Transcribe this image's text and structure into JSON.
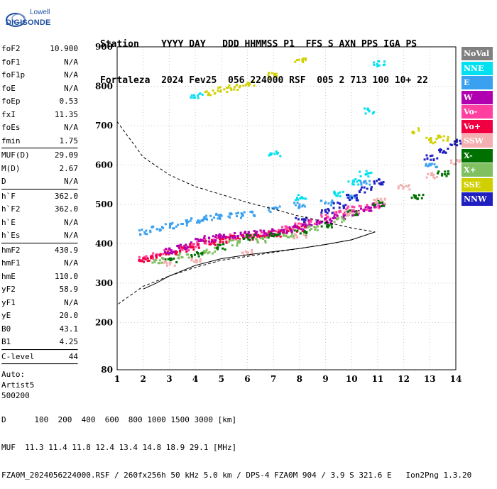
{
  "logo": {
    "line1": "Lowell",
    "line2": "DIGISONDE"
  },
  "header": {
    "labels": "Station    YYYY DAY   DDD HHMMSS P1  FFS S AXN PPS IGA PS",
    "values": "Fortaleza  2024 Fev25  056 224000 RSF  005 2 713 100 10+ 22"
  },
  "params": {
    "group1": [
      {
        "name": "foF2",
        "value": "10.900"
      },
      {
        "name": "foF1",
        "value": "N/A"
      },
      {
        "name": "foF1p",
        "value": "N/A"
      },
      {
        "name": "foE",
        "value": "N/A"
      },
      {
        "name": "foEp",
        "value": "0.53"
      },
      {
        "name": "fxI",
        "value": "11.35"
      },
      {
        "name": "foEs",
        "value": "N/A"
      },
      {
        "name": "fmin",
        "value": "1.75"
      }
    ],
    "group2": [
      {
        "name": "MUF(D)",
        "value": "29.09"
      },
      {
        "name": "M(D)",
        "value": "2.67"
      },
      {
        "name": "D",
        "value": "N/A"
      }
    ],
    "group3": [
      {
        "name": "h`F",
        "value": "362.0"
      },
      {
        "name": "h`F2",
        "value": "362.0"
      },
      {
        "name": "h`E",
        "value": "N/A"
      },
      {
        "name": "h`Es",
        "value": "N/A"
      }
    ],
    "group4": [
      {
        "name": "hmF2",
        "value": "430.9"
      },
      {
        "name": "hmF1",
        "value": "N/A"
      },
      {
        "name": "hmE",
        "value": "110.0"
      },
      {
        "name": "yF2",
        "value": "58.9"
      },
      {
        "name": "yF1",
        "value": "N/A"
      },
      {
        "name": "yE",
        "value": "20.0"
      },
      {
        "name": "B0",
        "value": "43.1"
      },
      {
        "name": "B1",
        "value": "4.25"
      }
    ],
    "group5": [
      {
        "name": "C-level",
        "value": "44"
      }
    ],
    "auto": [
      "Auto:",
      "Artist5",
      "500200"
    ]
  },
  "legend": [
    {
      "label": "NoVal",
      "color": "#808080"
    },
    {
      "label": "NNE",
      "color": "#00e0f0"
    },
    {
      "label": "E",
      "color": "#3aa0f0"
    },
    {
      "label": "W",
      "color": "#b000b0"
    },
    {
      "label": "Vo-",
      "color": "#ff40a0"
    },
    {
      "label": "Vo+",
      "color": "#f00040"
    },
    {
      "label": "SSW",
      "color": "#f4b0b0"
    },
    {
      "label": "X-",
      "color": "#007000"
    },
    {
      "label": "X+",
      "color": "#80c060"
    },
    {
      "label": "SSE",
      "color": "#d0d000"
    },
    {
      "label": "NNW",
      "color": "#2020c0"
    }
  ],
  "chart_data": {
    "type": "scatter",
    "xlim": [
      1,
      14
    ],
    "ylim": [
      80,
      900
    ],
    "x_ticks": [
      1,
      2,
      3,
      4,
      5,
      6,
      7,
      8,
      9,
      10,
      11,
      12,
      13,
      14
    ],
    "y_ticks": [
      80,
      200,
      300,
      400,
      500,
      600,
      700,
      800,
      900
    ],
    "grid": true,
    "legend_position": "right",
    "series": [
      {
        "color": "#ff40a0",
        "points": [
          [
            2,
            365
          ],
          [
            2.5,
            372
          ],
          [
            3,
            385
          ],
          [
            3.5,
            392
          ],
          [
            4,
            400
          ],
          [
            4.5,
            408
          ],
          [
            5,
            415
          ],
          [
            5.5,
            420
          ],
          [
            6,
            425
          ],
          [
            6.5,
            430
          ],
          [
            7,
            433
          ],
          [
            7.5,
            440
          ],
          [
            8,
            450
          ],
          [
            8.5,
            460
          ],
          [
            9,
            470
          ],
          [
            9.5,
            480
          ],
          [
            10,
            490
          ],
          [
            10.5,
            495
          ],
          [
            11,
            500
          ]
        ]
      },
      {
        "color": "#f00040",
        "points": [
          [
            2,
            362
          ],
          [
            2.5,
            370
          ],
          [
            3,
            380
          ],
          [
            3.5,
            388
          ],
          [
            4,
            395
          ],
          [
            4.5,
            405
          ],
          [
            5,
            412
          ],
          [
            5.5,
            418
          ],
          [
            6,
            420
          ],
          [
            6.5,
            425
          ],
          [
            7,
            428
          ],
          [
            7.5,
            435
          ],
          [
            8,
            440
          ]
        ]
      },
      {
        "color": "#b000b0",
        "points": [
          [
            3,
            385
          ],
          [
            3.5,
            395
          ],
          [
            4,
            410
          ],
          [
            4.5,
            415
          ],
          [
            5,
            420
          ],
          [
            5.5,
            425
          ],
          [
            6,
            428
          ],
          [
            6.5,
            430
          ],
          [
            7,
            432
          ],
          [
            7.5,
            438
          ],
          [
            8,
            445
          ],
          [
            8.5,
            455
          ],
          [
            9,
            460
          ],
          [
            9.5,
            470
          ],
          [
            10,
            480
          ],
          [
            10.5,
            490
          ],
          [
            11,
            500
          ]
        ]
      },
      {
        "color": "#3aa0f0",
        "points": [
          [
            2,
            432
          ],
          [
            2.5,
            440
          ],
          [
            3,
            448
          ],
          [
            3.5,
            455
          ],
          [
            4,
            463
          ],
          [
            4.5,
            468
          ],
          [
            5,
            472
          ],
          [
            5.5,
            475
          ],
          [
            6,
            478
          ],
          [
            7,
            490
          ],
          [
            8,
            500
          ],
          [
            9,
            505
          ],
          [
            10,
            520
          ],
          [
            10.5,
            560
          ],
          [
            13,
            600
          ]
        ]
      },
      {
        "color": "#007000",
        "points": [
          [
            3,
            362
          ],
          [
            4,
            375
          ],
          [
            5,
            395
          ],
          [
            6,
            418
          ],
          [
            7,
            422
          ],
          [
            8,
            430
          ],
          [
            9,
            450
          ],
          [
            10,
            480
          ],
          [
            11,
            505
          ],
          [
            12.5,
            520
          ],
          [
            13.5,
            580
          ]
        ]
      },
      {
        "color": "#80c060",
        "points": [
          [
            2.5,
            360
          ],
          [
            3.5,
            372
          ],
          [
            4.5,
            385
          ],
          [
            5.5,
            405
          ],
          [
            6.5,
            412
          ],
          [
            7.5,
            425
          ],
          [
            8.5,
            440
          ],
          [
            9.5,
            465
          ]
        ]
      },
      {
        "color": "#f4b0b0",
        "points": [
          [
            3,
            350
          ],
          [
            4,
            362
          ],
          [
            6,
            380
          ],
          [
            8,
            420
          ],
          [
            10,
            480
          ],
          [
            11,
            510
          ],
          [
            12,
            545
          ],
          [
            13,
            575
          ],
          [
            14,
            610
          ]
        ]
      },
      {
        "color": "#2020c0",
        "points": [
          [
            8,
            465
          ],
          [
            9,
            485
          ],
          [
            9.5,
            500
          ],
          [
            10,
            520
          ],
          [
            10.5,
            540
          ],
          [
            11,
            560
          ],
          [
            13,
            620
          ],
          [
            13.5,
            640
          ],
          [
            14,
            660
          ]
        ]
      },
      {
        "color": "#00e0f0",
        "points": [
          [
            4,
            780
          ],
          [
            7,
            630
          ],
          [
            8,
            520
          ],
          [
            9.5,
            530
          ],
          [
            10,
            560
          ],
          [
            10.5,
            580
          ],
          [
            10.7,
            740
          ],
          [
            11,
            860
          ]
        ]
      },
      {
        "color": "#d0d000",
        "points": [
          [
            4.5,
            785
          ],
          [
            5,
            795
          ],
          [
            5.5,
            800
          ],
          [
            6,
            810
          ],
          [
            7,
            830
          ],
          [
            8,
            870
          ],
          [
            12.5,
            690
          ],
          [
            13,
            665
          ],
          [
            13.5,
            670
          ]
        ]
      }
    ],
    "profile_dashed": [
      [
        1,
        710
      ],
      [
        2,
        620
      ],
      [
        3,
        575
      ],
      [
        4,
        545
      ],
      [
        5,
        525
      ],
      [
        6,
        505
      ],
      [
        7,
        488
      ],
      [
        8,
        470
      ],
      [
        9,
        455
      ],
      [
        10,
        440
      ],
      [
        10.9,
        430
      ],
      [
        10,
        410
      ],
      [
        9,
        398
      ],
      [
        8,
        388
      ],
      [
        7,
        378
      ],
      [
        6,
        368
      ],
      [
        5,
        358
      ],
      [
        4,
        340
      ],
      [
        3,
        318
      ],
      [
        2,
        292
      ],
      [
        1,
        245
      ]
    ],
    "trace_solid": [
      [
        2,
        285
      ],
      [
        2.5,
        300
      ],
      [
        3,
        318
      ],
      [
        4,
        345
      ],
      [
        5,
        362
      ],
      [
        6,
        372
      ],
      [
        7,
        380
      ],
      [
        8,
        388
      ],
      [
        9,
        398
      ],
      [
        10,
        410
      ],
      [
        10.9,
        430
      ]
    ]
  },
  "footer": {
    "line1": "D      100  200  400  600  800 1000 1500 3000 [km]",
    "line2": "MUF  11.3 11.4 11.8 12.4 13.4 14.8 18.9 29.1 [MHz]",
    "line3": "FZA0M_2024056224000.RSF / 260fx256h 50 kHz 5.0 km / DPS-4 FZA0M 904 / 3.9 S 321.6 E   Ion2Png 1.3.20"
  }
}
